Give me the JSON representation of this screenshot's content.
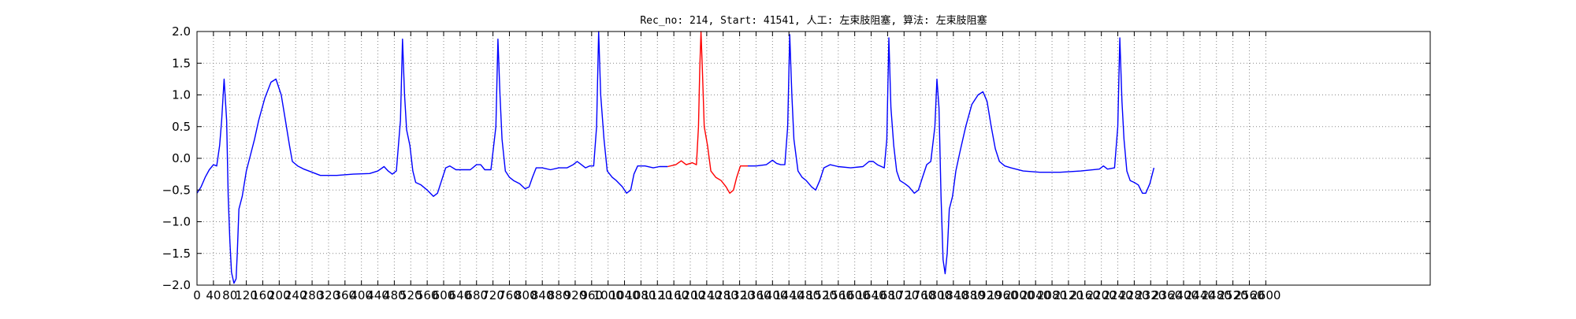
{
  "chart_data": {
    "type": "line",
    "title": "Rec_no: 214, Start: 41541, 人工: 左束肢阻塞, 算法: 左束肢阻塞",
    "xlabel": "",
    "ylabel": "",
    "xlim": [
      0,
      3000
    ],
    "ylim": [
      -2.0,
      2.0
    ],
    "grid": true,
    "x_ticks": [
      0,
      40,
      80,
      120,
      160,
      200,
      240,
      280,
      320,
      360,
      400,
      440,
      480,
      520,
      560,
      600,
      640,
      680,
      720,
      760,
      800,
      840,
      880,
      920,
      960,
      1000,
      1040,
      1080,
      1120,
      1160,
      1200,
      1240,
      1280,
      1320,
      1360,
      1400,
      1440,
      1480,
      1520,
      1560,
      1600,
      1640,
      1680,
      1720,
      1760,
      1800,
      1840,
      1880,
      1920,
      1960,
      2000,
      2040,
      2080,
      2120,
      2160,
      2200,
      2240,
      2280,
      2320,
      2360,
      2400,
      2440,
      2480,
      2520,
      2560,
      2600
    ],
    "x_tick_labels": [
      "0",
      "40",
      "80",
      "120",
      "160",
      "200",
      "240",
      "280",
      "320",
      "360",
      "400",
      "440",
      "480",
      "520",
      "560",
      "600",
      "640",
      "680",
      "720",
      "760",
      "800",
      "840",
      "880",
      "920",
      "960",
      "1000",
      "1040",
      "1080",
      "1120",
      "1160",
      "1200",
      "1240",
      "1280",
      "1320",
      "1360",
      "1400",
      "1440",
      "1480",
      "1520",
      "1560",
      "1600",
      "1640",
      "1680",
      "1720",
      "1760",
      "1800",
      "1840",
      "1880",
      "1920",
      "1960",
      "2000",
      "2040",
      "2080",
      "2120",
      "2160",
      "2200",
      "2240",
      "2280",
      "2320",
      "2360",
      "2400",
      "2440",
      "2480",
      "2520",
      "2560",
      "2600"
    ],
    "y_ticks": [
      2.0,
      1.5,
      1.0,
      0.5,
      0.0,
      -0.5,
      -1.0,
      -1.5,
      -2.0
    ],
    "y_tick_labels": [
      "2.0",
      "1.5",
      "1.0",
      "0.5",
      "0.0",
      "−0.5",
      "−1.0",
      "−1.5",
      "−2.0"
    ],
    "series": [
      {
        "color": "#0000ff",
        "segments": [
          [
            [
              0,
              -0.55
            ],
            [
              10,
              -0.45
            ],
            [
              20,
              -0.3
            ],
            [
              30,
              -0.18
            ],
            [
              40,
              -0.1
            ],
            [
              48,
              -0.12
            ],
            [
              55,
              0.2
            ],
            [
              60,
              0.6
            ],
            [
              66,
              1.25
            ],
            [
              72,
              0.6
            ],
            [
              76,
              -0.6
            ],
            [
              80,
              -1.3
            ],
            [
              84,
              -1.8
            ],
            [
              90,
              -1.97
            ],
            [
              95,
              -1.9
            ],
            [
              98,
              -1.5
            ],
            [
              102,
              -0.8
            ],
            [
              110,
              -0.6
            ],
            [
              120,
              -0.2
            ],
            [
              130,
              0.05
            ],
            [
              140,
              0.3
            ],
            [
              150,
              0.6
            ],
            [
              165,
              0.95
            ],
            [
              180,
              1.2
            ],
            [
              192,
              1.25
            ],
            [
              205,
              1.0
            ],
            [
              215,
              0.6
            ],
            [
              225,
              0.2
            ],
            [
              232,
              -0.05
            ],
            [
              245,
              -0.12
            ],
            [
              260,
              -0.17
            ],
            [
              280,
              -0.22
            ],
            [
              300,
              -0.27
            ],
            [
              340,
              -0.27
            ],
            [
              380,
              -0.25
            ],
            [
              420,
              -0.24
            ],
            [
              440,
              -0.2
            ],
            [
              455,
              -0.13
            ],
            [
              465,
              -0.2
            ],
            [
              475,
              -0.25
            ],
            [
              485,
              -0.2
            ],
            [
              495,
              0.6
            ],
            [
              500,
              1.88
            ],
            [
              505,
              1.0
            ],
            [
              510,
              0.45
            ],
            [
              518,
              0.2
            ],
            [
              525,
              -0.2
            ],
            [
              532,
              -0.38
            ],
            [
              545,
              -0.42
            ],
            [
              560,
              -0.5
            ],
            [
              575,
              -0.6
            ],
            [
              585,
              -0.55
            ],
            [
              595,
              -0.35
            ],
            [
              605,
              -0.15
            ],
            [
              615,
              -0.12
            ],
            [
              630,
              -0.18
            ],
            [
              650,
              -0.18
            ],
            [
              665,
              -0.18
            ],
            [
              680,
              -0.1
            ],
            [
              690,
              -0.1
            ],
            [
              700,
              -0.18
            ],
            [
              715,
              -0.18
            ],
            [
              727,
              0.5
            ],
            [
              732,
              1.88
            ],
            [
              737,
              1.0
            ],
            [
              742,
              0.3
            ],
            [
              750,
              -0.2
            ],
            [
              760,
              -0.3
            ],
            [
              770,
              -0.35
            ],
            [
              785,
              -0.4
            ],
            [
              798,
              -0.48
            ],
            [
              808,
              -0.45
            ],
            [
              816,
              -0.3
            ],
            [
              825,
              -0.15
            ],
            [
              840,
              -0.15
            ],
            [
              860,
              -0.18
            ],
            [
              880,
              -0.15
            ],
            [
              900,
              -0.15
            ],
            [
              915,
              -0.1
            ],
            [
              925,
              -0.05
            ],
            [
              935,
              -0.1
            ],
            [
              945,
              -0.15
            ],
            [
              955,
              -0.12
            ],
            [
              965,
              -0.12
            ],
            [
              972,
              0.5
            ],
            [
              977,
              2.0
            ],
            [
              982,
              1.0
            ],
            [
              990,
              0.3
            ],
            [
              998,
              -0.2
            ],
            [
              1010,
              -0.3
            ],
            [
              1020,
              -0.35
            ],
            [
              1035,
              -0.45
            ],
            [
              1045,
              -0.55
            ],
            [
              1055,
              -0.5
            ],
            [
              1063,
              -0.25
            ],
            [
              1072,
              -0.12
            ],
            [
              1090,
              -0.12
            ],
            [
              1110,
              -0.15
            ],
            [
              1125,
              -0.13
            ],
            [
              1145,
              -0.13
            ]
          ]
        ]
      },
      {
        "color": "#ff0000",
        "segments": [
          [
            [
              1145,
              -0.13
            ],
            [
              1165,
              -0.1
            ],
            [
              1178,
              -0.04
            ],
            [
              1190,
              -0.1
            ],
            [
              1205,
              -0.07
            ],
            [
              1215,
              -0.1
            ],
            [
              1220,
              0.5
            ],
            [
              1223,
              1.4
            ],
            [
              1226,
              2.0
            ],
            [
              1230,
              1.3
            ],
            [
              1234,
              0.5
            ],
            [
              1242,
              0.2
            ],
            [
              1250,
              -0.2
            ],
            [
              1262,
              -0.3
            ],
            [
              1275,
              -0.35
            ],
            [
              1287,
              -0.45
            ],
            [
              1296,
              -0.55
            ],
            [
              1305,
              -0.5
            ],
            [
              1313,
              -0.3
            ],
            [
              1322,
              -0.12
            ],
            [
              1340,
              -0.12
            ]
          ]
        ]
      },
      {
        "color": "#0000ff",
        "segments": [
          [
            [
              1340,
              -0.12
            ],
            [
              1360,
              -0.12
            ],
            [
              1385,
              -0.1
            ],
            [
              1400,
              -0.03
            ],
            [
              1410,
              -0.08
            ],
            [
              1420,
              -0.1
            ],
            [
              1430,
              -0.1
            ],
            [
              1437,
              0.5
            ],
            [
              1442,
              1.95
            ],
            [
              1447,
              1.0
            ],
            [
              1452,
              0.3
            ],
            [
              1462,
              -0.2
            ],
            [
              1472,
              -0.3
            ],
            [
              1482,
              -0.35
            ],
            [
              1495,
              -0.45
            ],
            [
              1505,
              -0.5
            ],
            [
              1515,
              -0.35
            ],
            [
              1525,
              -0.15
            ],
            [
              1540,
              -0.1
            ],
            [
              1560,
              -0.13
            ],
            [
              1590,
              -0.15
            ],
            [
              1620,
              -0.13
            ],
            [
              1635,
              -0.05
            ],
            [
              1645,
              -0.05
            ],
            [
              1655,
              -0.1
            ],
            [
              1672,
              -0.15
            ],
            [
              1678,
              0.3
            ],
            [
              1683,
              1.9
            ],
            [
              1688,
              0.8
            ],
            [
              1695,
              0.2
            ],
            [
              1702,
              -0.2
            ],
            [
              1710,
              -0.35
            ],
            [
              1722,
              -0.4
            ],
            [
              1732,
              -0.45
            ],
            [
              1745,
              -0.55
            ],
            [
              1755,
              -0.5
            ],
            [
              1765,
              -0.3
            ],
            [
              1775,
              -0.1
            ],
            [
              1785,
              -0.05
            ],
            [
              1795,
              0.5
            ],
            [
              1800,
              1.25
            ],
            [
              1805,
              0.8
            ],
            [
              1810,
              -0.6
            ],
            [
              1815,
              -1.6
            ],
            [
              1820,
              -1.82
            ],
            [
              1825,
              -1.5
            ],
            [
              1830,
              -0.8
            ],
            [
              1838,
              -0.6
            ],
            [
              1846,
              -0.2
            ],
            [
              1856,
              0.1
            ],
            [
              1870,
              0.5
            ],
            [
              1885,
              0.85
            ],
            [
              1900,
              1.0
            ],
            [
              1912,
              1.05
            ],
            [
              1922,
              0.9
            ],
            [
              1932,
              0.5
            ],
            [
              1942,
              0.15
            ],
            [
              1952,
              -0.05
            ],
            [
              1965,
              -0.12
            ],
            [
              1980,
              -0.15
            ],
            [
              2010,
              -0.2
            ],
            [
              2050,
              -0.22
            ],
            [
              2100,
              -0.22
            ],
            [
              2150,
              -0.2
            ],
            [
              2195,
              -0.17
            ],
            [
              2205,
              -0.12
            ],
            [
              2215,
              -0.17
            ],
            [
              2232,
              -0.15
            ],
            [
              2240,
              0.5
            ],
            [
              2245,
              1.9
            ],
            [
              2250,
              0.9
            ],
            [
              2255,
              0.3
            ],
            [
              2262,
              -0.2
            ],
            [
              2270,
              -0.35
            ],
            [
              2280,
              -0.38
            ],
            [
              2290,
              -0.42
            ],
            [
              2300,
              -0.55
            ],
            [
              2308,
              -0.55
            ],
            [
              2318,
              -0.4
            ],
            [
              2328,
              -0.15
            ]
          ]
        ]
      }
    ]
  }
}
